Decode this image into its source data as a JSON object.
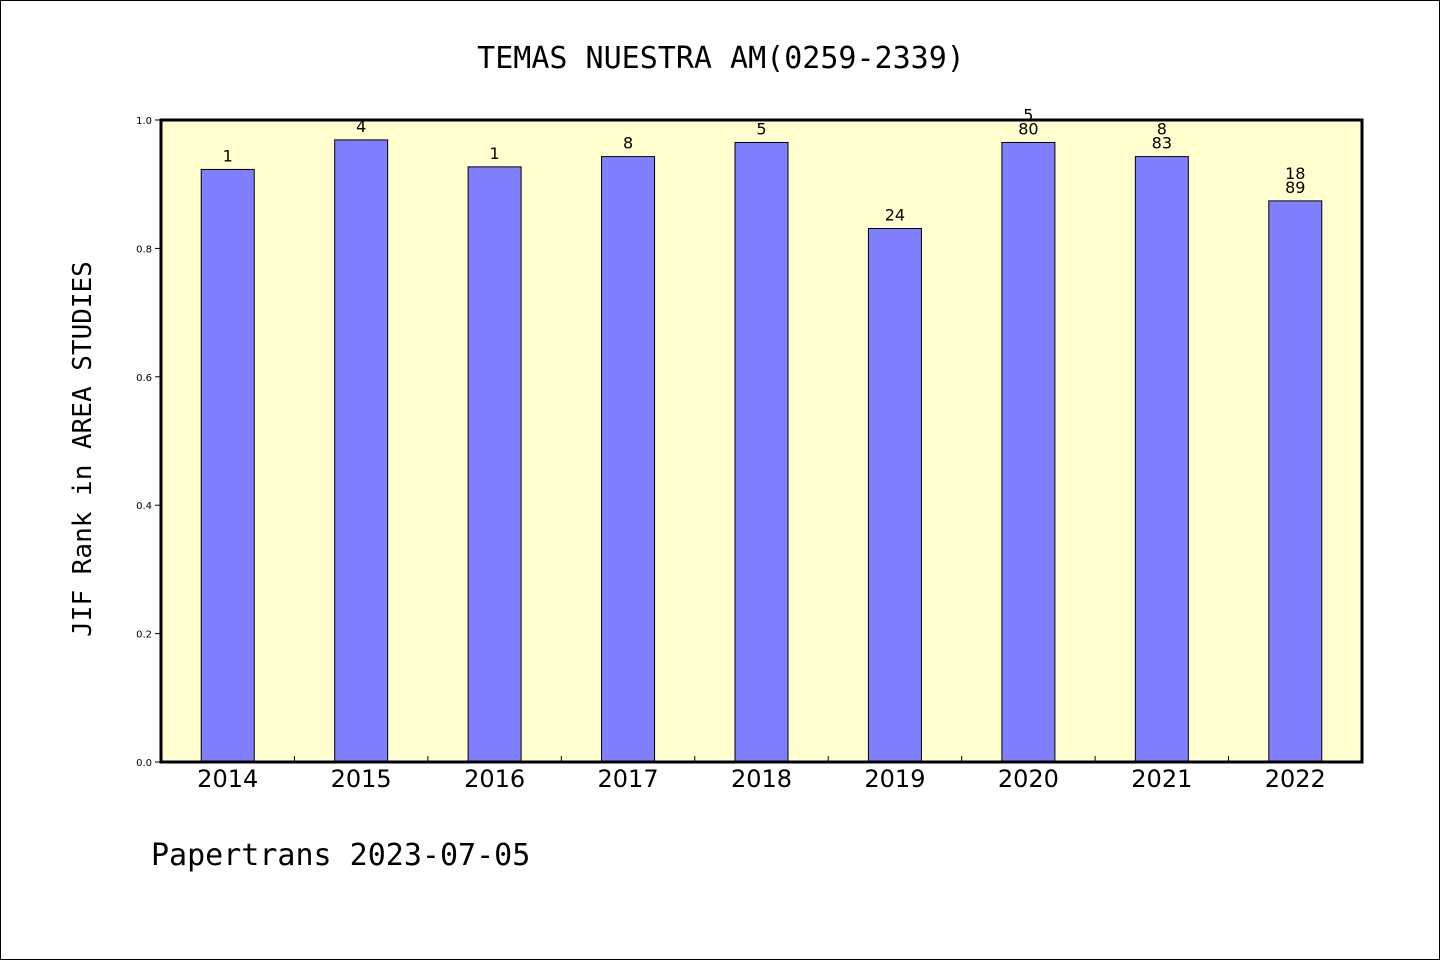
{
  "chart_data": {
    "type": "bar",
    "title": "TEMAS NUESTRA AM(0259-2339)",
    "ylabel": "JIF Rank in AREA STUDIES",
    "xlabel": "",
    "footer": "Papertrans 2023-07-05",
    "categories": [
      "2014",
      "2015",
      "2016",
      "2017",
      "2018",
      "2019",
      "2020",
      "2021",
      "2022"
    ],
    "values": [
      0.923,
      0.969,
      0.927,
      0.943,
      0.965,
      0.831,
      0.965,
      0.943,
      0.874
    ],
    "bar_labels": [
      [
        "1"
      ],
      [
        "4"
      ],
      [
        "1"
      ],
      [
        "8"
      ],
      [
        "5"
      ],
      [
        "24"
      ],
      [
        "5",
        "80"
      ],
      [
        "8",
        "83"
      ],
      [
        "18",
        "89"
      ]
    ],
    "ylim": [
      0,
      1.0
    ],
    "yticks": [
      "0.0",
      "0.2",
      "0.4",
      "0.6",
      "0.8",
      "1.0"
    ],
    "grid": false,
    "legend": "none",
    "colors": {
      "bar_fill": "#8080ff",
      "plot_background": "#ffffd0",
      "border": "#000000"
    }
  }
}
